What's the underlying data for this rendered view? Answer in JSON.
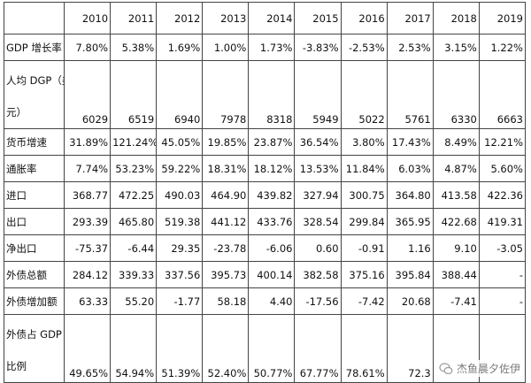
{
  "table": {
    "years": [
      "2010",
      "2011",
      "2012",
      "2013",
      "2014",
      "2015",
      "2016",
      "2017",
      "2018",
      "2019"
    ],
    "rows": [
      {
        "label": "GDP 增长率",
        "label2": "",
        "values": [
          "7.80%",
          "5.38%",
          "1.69%",
          "1.00%",
          "1.73%",
          "-3.83%",
          "-2.53%",
          "2.53%",
          "3.15%",
          "1.22%"
        ]
      },
      {
        "label": "人均 DGP（美",
        "label2": "元）",
        "values": [
          "6029",
          "6519",
          "6940",
          "7978",
          "8318",
          "5949",
          "5022",
          "5761",
          "6330",
          "6663"
        ]
      },
      {
        "label": "货币增速",
        "label2": "",
        "values": [
          "31.89%",
          "121.24%",
          "45.05%",
          "19.85%",
          "23.87%",
          "36.54%",
          "3.80%",
          "17.43%",
          "8.49%",
          "12.21%"
        ]
      },
      {
        "label": "通胀率",
        "label2": "",
        "values": [
          "7.74%",
          "53.23%",
          "59.22%",
          "18.31%",
          "18.12%",
          "13.53%",
          "11.84%",
          "6.03%",
          "4.87%",
          "5.60%"
        ]
      },
      {
        "label": "进口",
        "label2": "",
        "values": [
          "368.77",
          "472.25",
          "490.03",
          "464.90",
          "439.82",
          "327.94",
          "300.75",
          "364.80",
          "413.58",
          "422.36"
        ]
      },
      {
        "label": "出口",
        "label2": "",
        "values": [
          "293.39",
          "465.80",
          "519.38",
          "441.12",
          "433.76",
          "328.54",
          "299.84",
          "365.95",
          "422.68",
          "419.31"
        ]
      },
      {
        "label": "净出口",
        "label2": "",
        "values": [
          "-75.37",
          "-6.44",
          "29.35",
          "-23.78",
          "-6.06",
          "0.60",
          "-0.91",
          "1.16",
          "9.10",
          "-3.05"
        ]
      },
      {
        "label": "外债总额",
        "label2": "",
        "values": [
          "284.12",
          "339.33",
          "337.56",
          "395.73",
          "400.14",
          "382.58",
          "375.16",
          "395.84",
          "388.44",
          "-"
        ]
      },
      {
        "label": "外债增加额",
        "label2": "",
        "values": [
          "63.33",
          "55.20",
          "-1.77",
          "58.18",
          "4.40",
          "-17.56",
          "-7.42",
          "20.68",
          "-7.41",
          "-"
        ]
      },
      {
        "label": "外债占 GDP",
        "label2": "比例",
        "values": [
          "49.65%",
          "54.94%",
          "51.39%",
          "52.40%",
          "50.77%",
          "67.77%",
          "78.61%",
          "72.3",
          "",
          ""
        ]
      }
    ]
  },
  "watermark": {
    "text": "杰鱼晨夕佐伊",
    "icon": "chat-icon"
  }
}
